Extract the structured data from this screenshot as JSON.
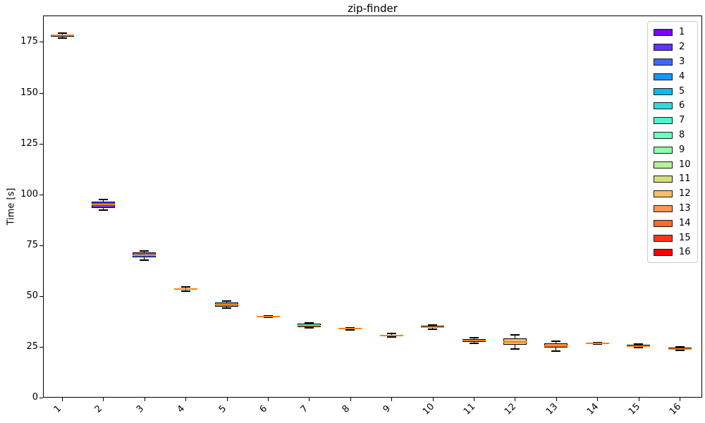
{
  "chart_data": {
    "type": "boxplot",
    "title": "zip-finder",
    "xlabel": "",
    "ylabel": "Time [s]",
    "categories": [
      "1",
      "2",
      "3",
      "4",
      "5",
      "6",
      "7",
      "8",
      "9",
      "10",
      "11",
      "12",
      "13",
      "14",
      "15",
      "16"
    ],
    "yticks": [
      0,
      25,
      50,
      75,
      100,
      125,
      150,
      175
    ],
    "ylim": [
      0,
      188
    ],
    "grid": false,
    "legend_position": "upper right",
    "median_color": "#ff7f0e",
    "box_edge_color": "#000000",
    "boxes": [
      {
        "label": "1",
        "color": "#8000ff",
        "whislo": 176.9,
        "q1": 177.6,
        "med": 178.2,
        "q3": 178.8,
        "whishi": 179.5
      },
      {
        "label": "2",
        "color": "#5d35fe",
        "whislo": 92.2,
        "q1": 93.4,
        "med": 95.2,
        "q3": 96.6,
        "whishi": 97.3
      },
      {
        "label": "3",
        "color": "#3c68f9",
        "whislo": 67.5,
        "q1": 68.9,
        "med": 70.0,
        "q3": 71.3,
        "whishi": 72.3
      },
      {
        "label": "4",
        "color": "#1a96f3",
        "whislo": 52.5,
        "q1": 53.0,
        "med": 53.4,
        "q3": 53.9,
        "whishi": 54.3
      },
      {
        "label": "5",
        "color": "#09bee9",
        "whislo": 44.2,
        "q1": 44.8,
        "med": 45.8,
        "q3": 46.9,
        "whishi": 47.4
      },
      {
        "label": "6",
        "color": "#2bdddd",
        "whislo": 39.5,
        "q1": 39.7,
        "med": 39.9,
        "q3": 40.1,
        "whishi": 40.4
      },
      {
        "label": "7",
        "color": "#4df3ce",
        "whislo": 34.4,
        "q1": 34.8,
        "med": 35.5,
        "q3": 36.3,
        "whishi": 36.7
      },
      {
        "label": "8",
        "color": "#6ffebe",
        "whislo": 33.4,
        "q1": 33.7,
        "med": 34.0,
        "q3": 34.2,
        "whishi": 34.5
      },
      {
        "label": "9",
        "color": "#91feab",
        "whislo": 29.8,
        "q1": 30.2,
        "med": 30.5,
        "q3": 31.0,
        "whishi": 31.4
      },
      {
        "label": "10",
        "color": "#b3f396",
        "whislo": 33.6,
        "q1": 34.2,
        "med": 34.8,
        "q3": 35.4,
        "whishi": 35.9
      },
      {
        "label": "11",
        "color": "#d5dd80",
        "whislo": 26.6,
        "q1": 27.3,
        "med": 28.0,
        "q3": 28.9,
        "whishi": 29.6
      },
      {
        "label": "12",
        "color": "#f7be68",
        "whislo": 23.9,
        "q1": 26.0,
        "med": 27.3,
        "q3": 29.0,
        "whishi": 30.7
      },
      {
        "label": "13",
        "color": "#ff964f",
        "whislo": 23.0,
        "q1": 24.5,
        "med": 25.4,
        "q3": 26.6,
        "whishi": 27.6
      },
      {
        "label": "14",
        "color": "#ff6835",
        "whislo": 26.4,
        "q1": 26.6,
        "med": 26.8,
        "q3": 26.9,
        "whishi": 27.1
      },
      {
        "label": "15",
        "color": "#ff351a",
        "whislo": 24.6,
        "q1": 25.0,
        "med": 25.4,
        "q3": 25.9,
        "whishi": 26.3
      },
      {
        "label": "16",
        "color": "#ff0000",
        "whislo": 23.2,
        "q1": 23.6,
        "med": 24.0,
        "q3": 24.5,
        "whishi": 24.9
      }
    ],
    "legend": [
      {
        "label": "1",
        "color": "#8000ff"
      },
      {
        "label": "2",
        "color": "#5d35fe"
      },
      {
        "label": "3",
        "color": "#3c68f9"
      },
      {
        "label": "4",
        "color": "#1a96f3"
      },
      {
        "label": "5",
        "color": "#09bee9"
      },
      {
        "label": "6",
        "color": "#2bdddd"
      },
      {
        "label": "7",
        "color": "#4df3ce"
      },
      {
        "label": "8",
        "color": "#6ffebe"
      },
      {
        "label": "9",
        "color": "#91feab"
      },
      {
        "label": "10",
        "color": "#b3f396"
      },
      {
        "label": "11",
        "color": "#d5dd80"
      },
      {
        "label": "12",
        "color": "#f7be68"
      },
      {
        "label": "13",
        "color": "#ff964f"
      },
      {
        "label": "14",
        "color": "#ff6835"
      },
      {
        "label": "15",
        "color": "#ff351a"
      },
      {
        "label": "16",
        "color": "#ff0000"
      }
    ]
  }
}
